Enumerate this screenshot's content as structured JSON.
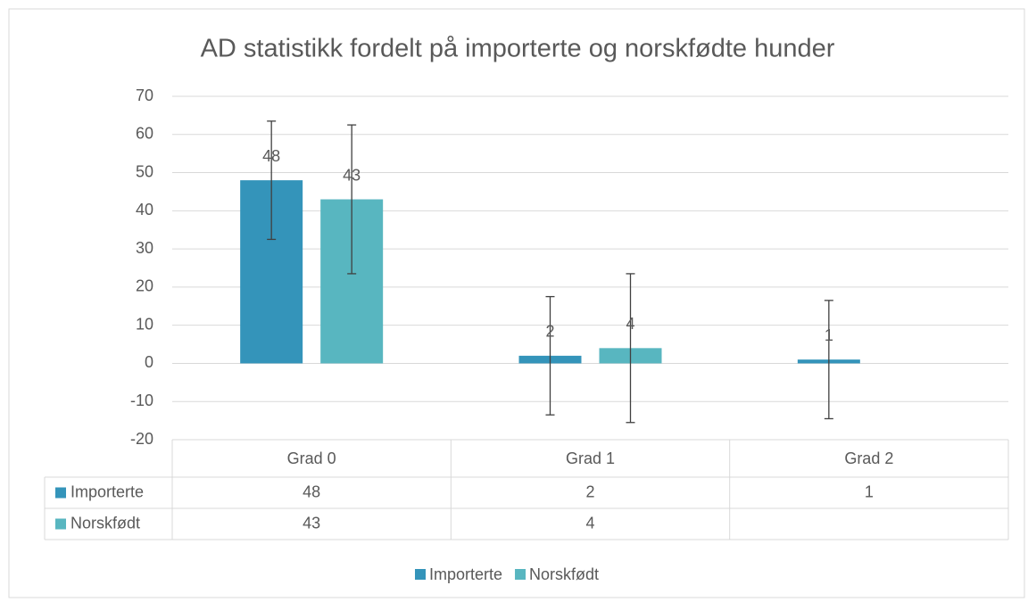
{
  "chart_data": {
    "type": "bar",
    "title": "AD statistikk fordelt på importerte og norskfødte hunder",
    "categories": [
      "Grad 0",
      "Grad 1",
      "Grad 2"
    ],
    "series": [
      {
        "name": "Importerte",
        "color": "#3494ba",
        "values": [
          48,
          2,
          1
        ],
        "errors": [
          15.5,
          15.5,
          15.5
        ]
      },
      {
        "name": "Norskfødt",
        "color": "#58b6c0",
        "values": [
          43,
          4,
          null
        ],
        "errors": [
          19.5,
          19.5,
          19.5
        ]
      }
    ],
    "ylim": [
      -20,
      70
    ],
    "yticks": [
      -20,
      -10,
      0,
      10,
      20,
      30,
      40,
      50,
      60,
      70
    ],
    "grid": true,
    "data_table": true,
    "legend": "bottom"
  }
}
